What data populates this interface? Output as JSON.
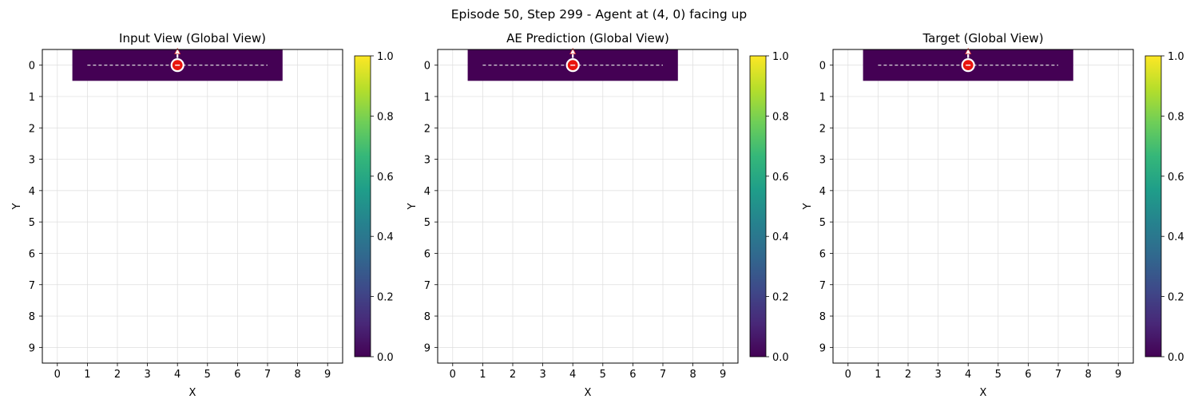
{
  "suptitle": "Episode 50, Step 299 - Agent at (4, 0) facing up",
  "chart_data": [
    {
      "type": "heatmap",
      "title": "Input View (Global View)",
      "xlabel": "X",
      "ylabel": "Y",
      "xticks": [
        0,
        1,
        2,
        3,
        4,
        5,
        6,
        7,
        8,
        9
      ],
      "yticks": [
        0,
        1,
        2,
        3,
        4,
        5,
        6,
        7,
        8,
        9
      ],
      "xlim": [
        -0.5,
        9.5
      ],
      "ylim": [
        9.5,
        -0.5
      ],
      "grid": true,
      "colormap": "viridis",
      "clim": [
        0,
        1
      ],
      "colorbar_ticks": [
        "0.0",
        "0.2",
        "0.4",
        "0.6",
        "0.8",
        "1.0"
      ],
      "observed_row": {
        "y": 0,
        "x_start": 1,
        "x_end": 7,
        "value": 0.0
      },
      "path_line": {
        "x": [
          1,
          7
        ],
        "y": [
          0,
          0
        ],
        "style": "dashed"
      },
      "agent": {
        "x": 4,
        "y": 0,
        "facing": "up"
      }
    },
    {
      "type": "heatmap",
      "title": "AE Prediction (Global View)",
      "xlabel": "X",
      "ylabel": "Y",
      "xticks": [
        0,
        1,
        2,
        3,
        4,
        5,
        6,
        7,
        8,
        9
      ],
      "yticks": [
        0,
        1,
        2,
        3,
        4,
        5,
        6,
        7,
        8,
        9
      ],
      "xlim": [
        -0.5,
        9.5
      ],
      "ylim": [
        9.5,
        -0.5
      ],
      "grid": true,
      "colormap": "viridis",
      "clim": [
        0,
        1
      ],
      "colorbar_ticks": [
        "0.0",
        "0.2",
        "0.4",
        "0.6",
        "0.8",
        "1.0"
      ],
      "observed_row": {
        "y": 0,
        "x_start": 1,
        "x_end": 7,
        "value": 0.0
      },
      "path_line": {
        "x": [
          1,
          7
        ],
        "y": [
          0,
          0
        ],
        "style": "dashed"
      },
      "agent": {
        "x": 4,
        "y": 0,
        "facing": "up"
      }
    },
    {
      "type": "heatmap",
      "title": "Target (Global View)",
      "xlabel": "X",
      "ylabel": "Y",
      "xticks": [
        0,
        1,
        2,
        3,
        4,
        5,
        6,
        7,
        8,
        9
      ],
      "yticks": [
        0,
        1,
        2,
        3,
        4,
        5,
        6,
        7,
        8,
        9
      ],
      "xlim": [
        -0.5,
        9.5
      ],
      "ylim": [
        9.5,
        -0.5
      ],
      "grid": true,
      "colormap": "viridis",
      "clim": [
        0,
        1
      ],
      "colorbar_ticks": [
        "0.0",
        "0.2",
        "0.4",
        "0.6",
        "0.8",
        "1.0"
      ],
      "observed_row": {
        "y": 0,
        "x_start": 1,
        "x_end": 7,
        "value": 0.0
      },
      "path_line": {
        "x": [
          1,
          7
        ],
        "y": [
          0,
          0
        ],
        "style": "dashed"
      },
      "agent": {
        "x": 4,
        "y": 0,
        "facing": "up"
      }
    }
  ],
  "colors": {
    "viridis_0": "#440154",
    "viridis_stops": [
      "#440154",
      "#482878",
      "#3e4989",
      "#31688e",
      "#26828e",
      "#1f9e89",
      "#35b779",
      "#6ece58",
      "#b5de2b",
      "#fde725"
    ],
    "agent_fill": "#e8150e",
    "agent_edge": "#ffffff",
    "arrow": "#ffffff",
    "arrow_edge": "#d9383a",
    "path": "#d8d8d8",
    "grid": "#dddddd"
  }
}
